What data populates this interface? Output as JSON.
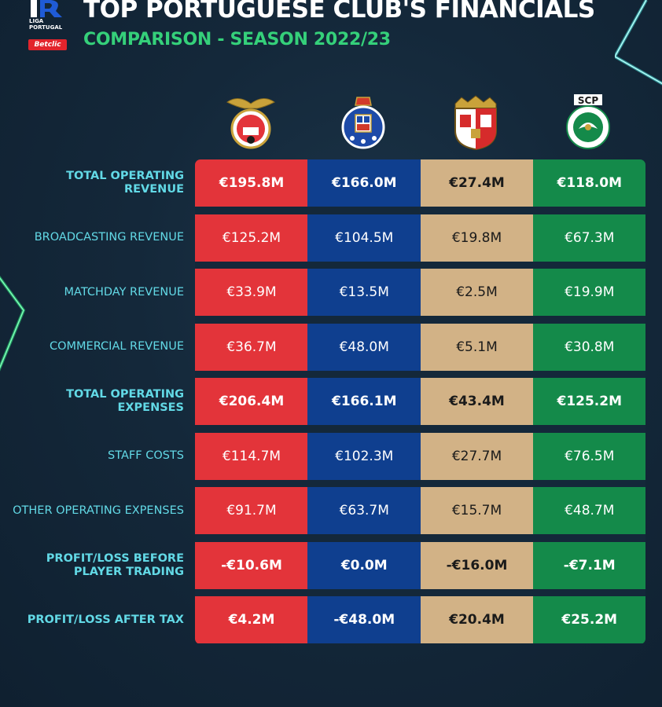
{
  "header": {
    "title": "TOP PORTUGUESE CLUB'S FINANCIALS",
    "subtitle": "COMPARISON - SEASON 2022/23",
    "logo": {
      "line1": "LIGA",
      "line2": "PORTUGAL",
      "badge": "Betclic"
    }
  },
  "clubs": [
    {
      "crest": "benfica-crest",
      "color": "#e3343a",
      "text_color": "#ffffff"
    },
    {
      "crest": "porto-crest",
      "color": "#0f3f8f",
      "text_color": "#ffffff"
    },
    {
      "crest": "braga-crest",
      "color": "#d2b286",
      "text_color": "#1a1a1a"
    },
    {
      "crest": "sporting-crest",
      "color": "#148a4a",
      "text_color": "#ffffff",
      "crest_text": "SCP"
    }
  ],
  "chart_data": {
    "type": "table",
    "title": "TOP PORTUGUESE CLUB'S FINANCIALS",
    "subtitle": "COMPARISON - SEASON 2022/23",
    "rows": [
      {
        "label": "TOTAL OPERATING REVENUE",
        "bold": true,
        "values": [
          "€195.8M",
          "€166.0M",
          "€27.4M",
          "€118.0M"
        ]
      },
      {
        "label": "BROADCASTING REVENUE",
        "bold": false,
        "values": [
          "€125.2M",
          "€104.5M",
          "€19.8M",
          "€67.3M"
        ]
      },
      {
        "label": "MATCHDAY REVENUE",
        "bold": false,
        "values": [
          "€33.9M",
          "€13.5M",
          "€2.5M",
          "€19.9M"
        ]
      },
      {
        "label": "COMMERCIAL REVENUE",
        "bold": false,
        "values": [
          "€36.7M",
          "€48.0M",
          "€5.1M",
          "€30.8M"
        ]
      },
      {
        "label": "TOTAL OPERATING EXPENSES",
        "bold": true,
        "values": [
          "€206.4M",
          "€166.1M",
          "€43.4M",
          "€125.2M"
        ]
      },
      {
        "label": "STAFF COSTS",
        "bold": false,
        "values": [
          "€114.7M",
          "€102.3M",
          "€27.7M",
          "€76.5M"
        ]
      },
      {
        "label": "OTHER OPERATING EXPENSES",
        "bold": false,
        "values": [
          "€91.7M",
          "€63.7M",
          "€15.7M",
          "€48.7M"
        ]
      },
      {
        "label": "PROFIT/LOSS BEFORE PLAYER TRADING",
        "bold": true,
        "values": [
          "-€10.6M",
          "€0.0M",
          "-€16.0M",
          "-€7.1M"
        ]
      },
      {
        "label": "PROFIT/LOSS AFTER TAX",
        "bold": true,
        "values": [
          "€4.2M",
          "-€48.0M",
          "€20.4M",
          "€25.2M"
        ]
      }
    ]
  }
}
